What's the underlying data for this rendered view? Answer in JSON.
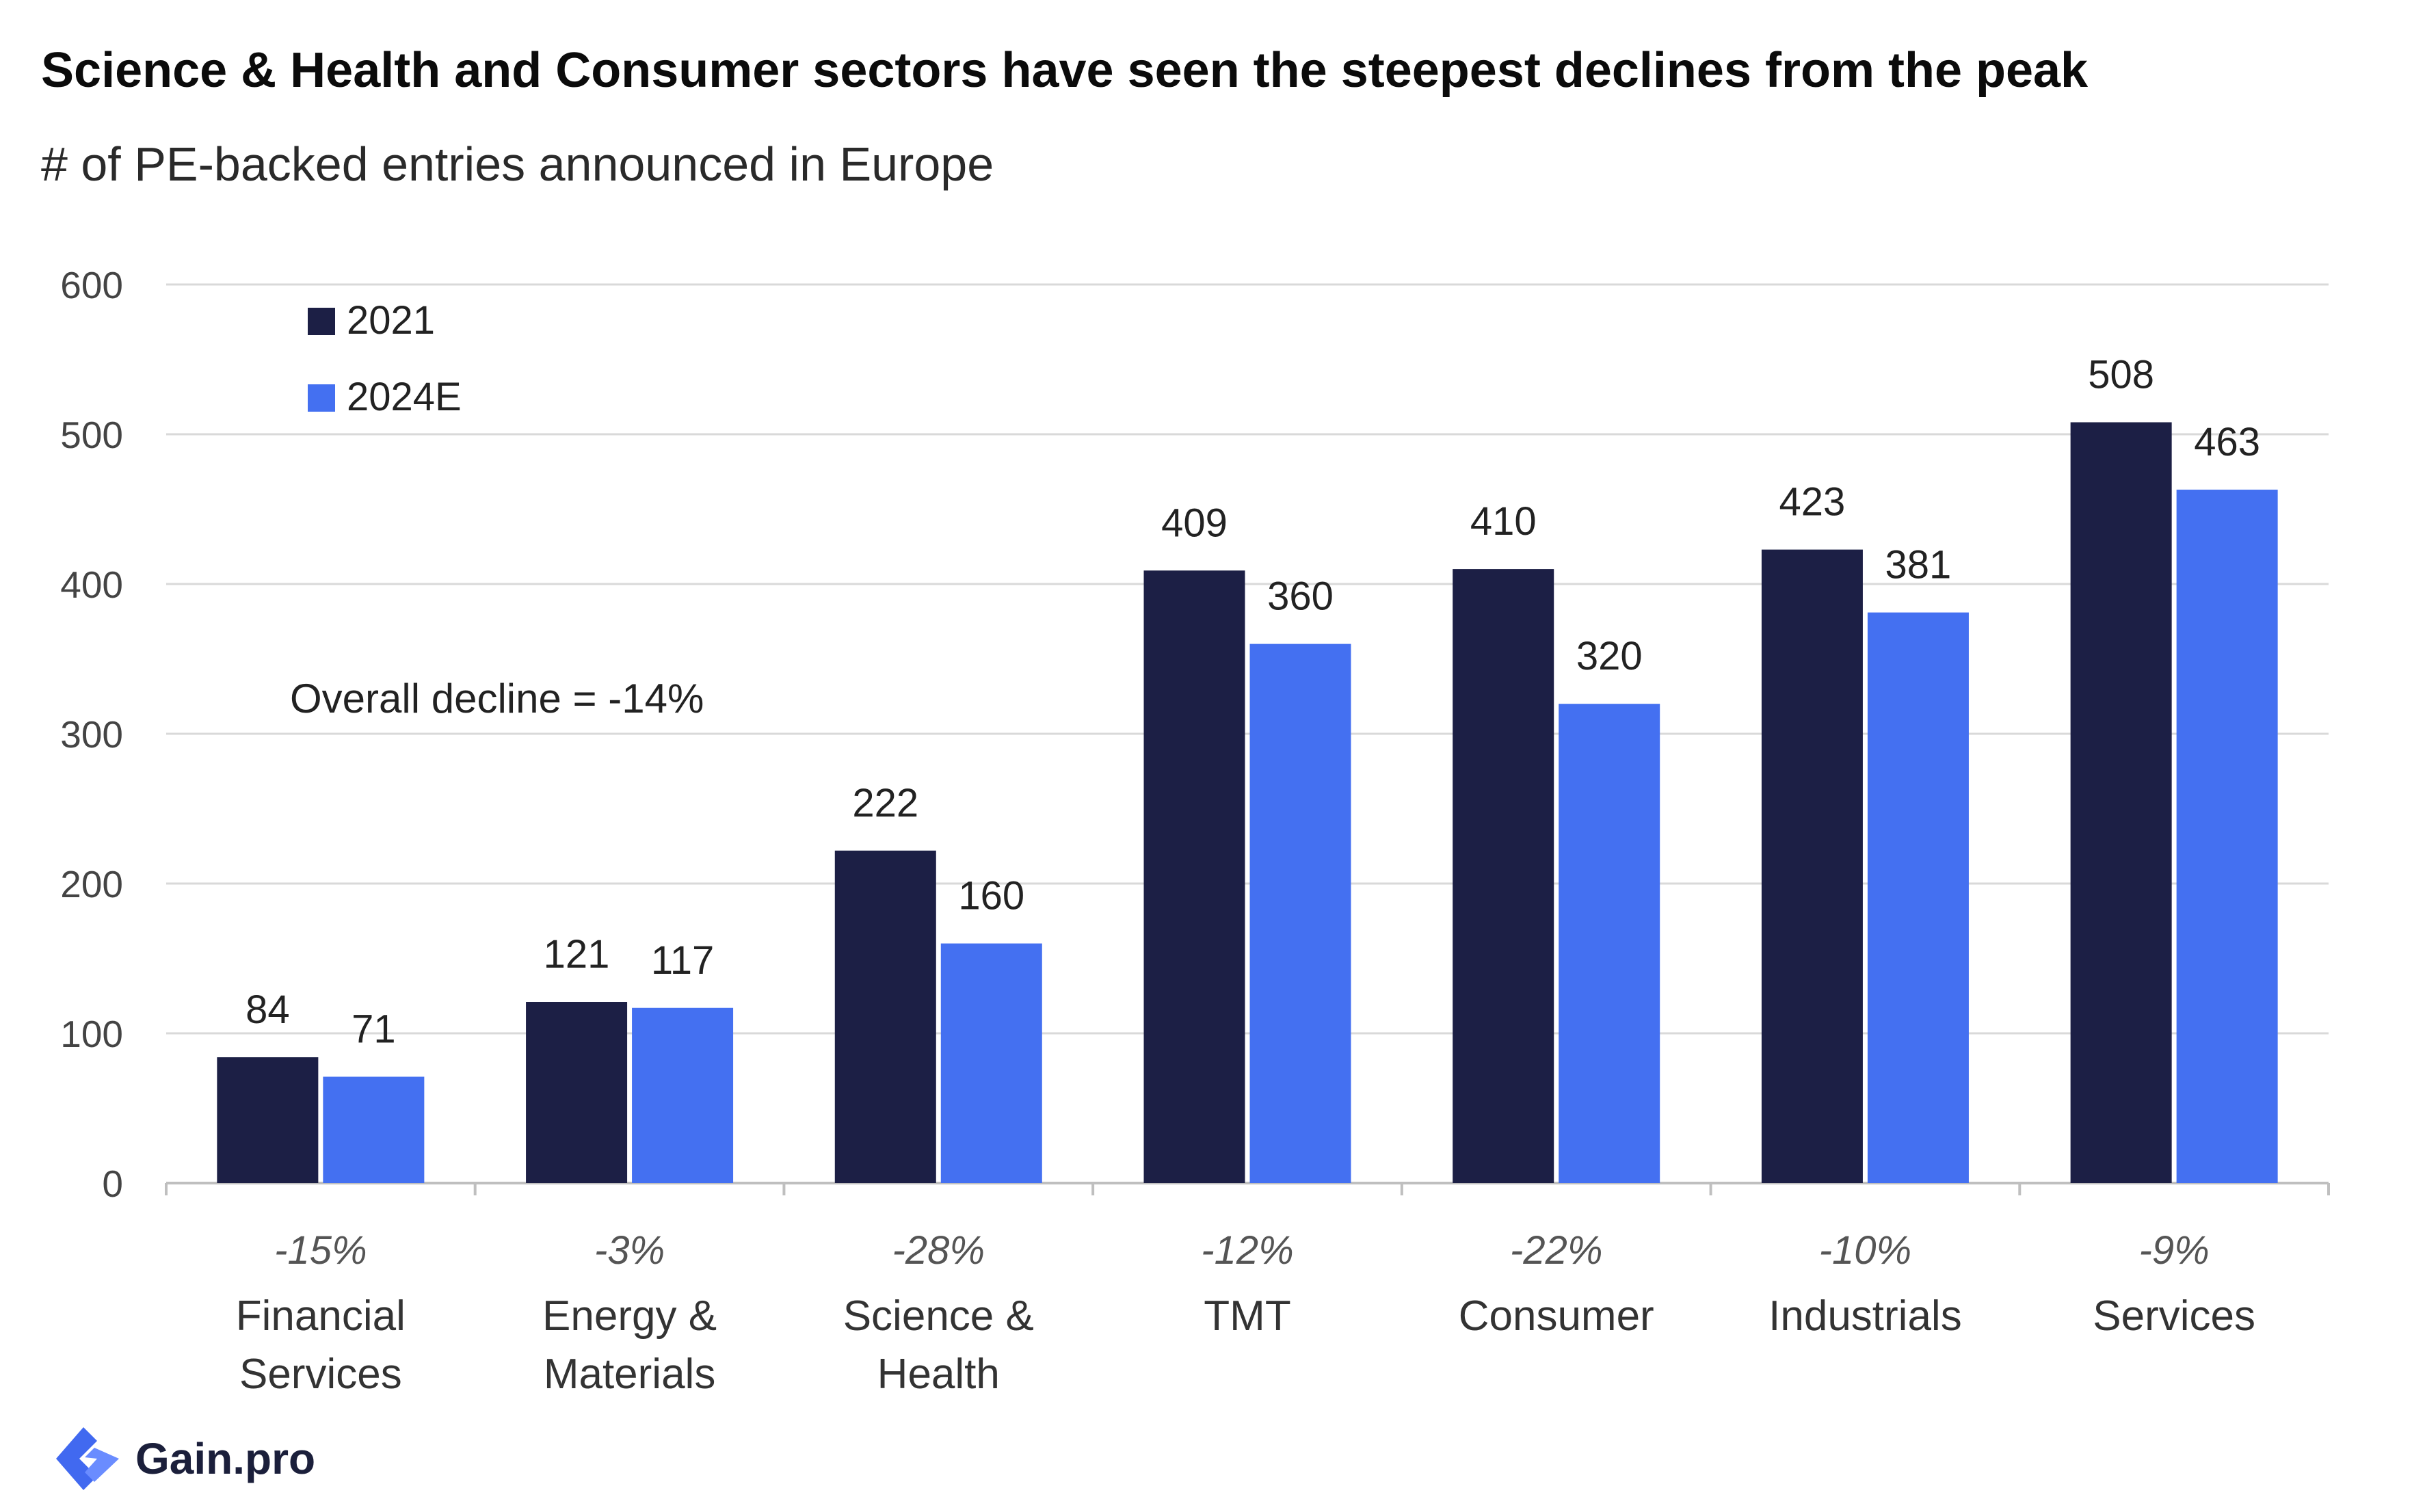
{
  "title": "Science & Health and Consumer sectors have seen the steepest declines from the peak",
  "subtitle": "# of PE-backed entries announced in Europe",
  "brand": {
    "name": "Gain.pro",
    "icon": "gain-pro-logo-icon",
    "color": "#4169f0"
  },
  "colors": {
    "series_2021": "#1c1f45",
    "series_2024E": "#4470f1",
    "grid": "#d9d9d9",
    "axis": "#bfbfbf"
  },
  "chart_data": {
    "type": "bar",
    "categories": [
      "Financial Services",
      "Energy & Materials",
      "Science & Health",
      "TMT",
      "Consumer",
      "Industrials",
      "Services"
    ],
    "category_lines": [
      [
        "Financial",
        "Services"
      ],
      [
        "Energy &",
        "Materials"
      ],
      [
        "Science &",
        "Health"
      ],
      [
        "TMT"
      ],
      [
        "Consumer"
      ],
      [
        "Industrials"
      ],
      [
        "Services"
      ]
    ],
    "change_labels": [
      "-15%",
      "-3%",
      "-28%",
      "-12%",
      "-22%",
      "-10%",
      "-9%"
    ],
    "series": [
      {
        "name": "2021",
        "values": [
          84,
          121,
          222,
          409,
          410,
          423,
          508
        ]
      },
      {
        "name": "2024E",
        "values": [
          71,
          117,
          160,
          360,
          320,
          381,
          463
        ]
      }
    ],
    "ylim": [
      0,
      600
    ],
    "yticks": [
      0,
      100,
      200,
      300,
      400,
      500,
      600
    ],
    "grid": true,
    "legend_position": "top-left",
    "annotation": "Overall decline  =  -14%"
  }
}
